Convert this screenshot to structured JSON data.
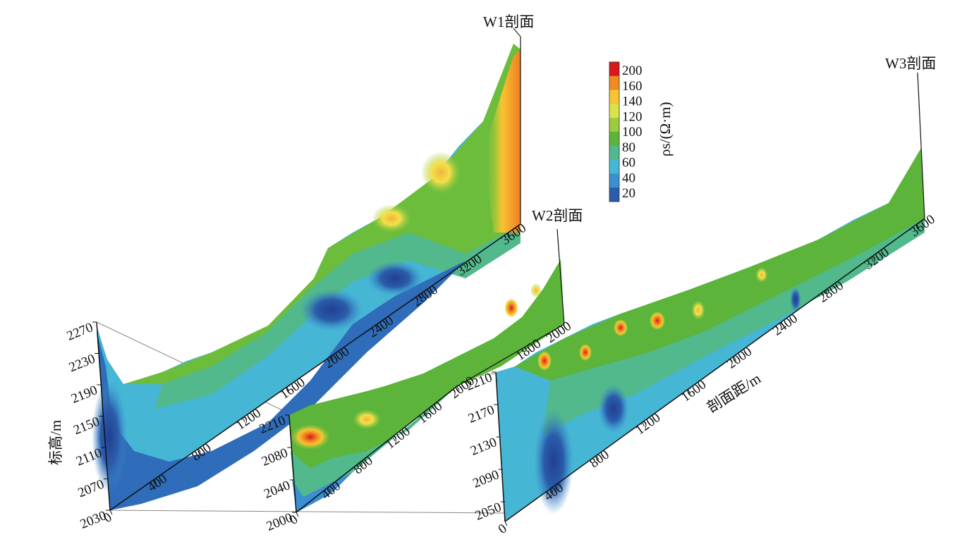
{
  "diagram": {
    "type": "3d fence diagram of apparent resistivity sections",
    "profiles": [
      {
        "id": "W1",
        "title": "W1剖面",
        "distance_ticks": [
          "0",
          "400",
          "800",
          "1200",
          "1600",
          "2000",
          "2400",
          "2800",
          "3200",
          "3600"
        ],
        "elevation_ticks": [
          "2030",
          "2070",
          "2110",
          "2150",
          "2190",
          "2230",
          "2270"
        ]
      },
      {
        "id": "W2",
        "title": "W2剖面",
        "distance_ticks": [
          "0",
          "400",
          "800",
          "1200",
          "1600",
          "2000"
        ],
        "distance_ticks_upper": [
          "1800",
          "2000"
        ],
        "elevation_ticks": [
          "2000",
          "2040",
          "2080",
          "2210"
        ]
      },
      {
        "id": "W3",
        "title": "W3剖面",
        "distance_ticks": [
          "0",
          "400",
          "800",
          "1200",
          "1600",
          "2000",
          "2400",
          "2800",
          "3200",
          "3600"
        ],
        "elevation_ticks": [
          "2050",
          "2090",
          "2130",
          "2170",
          "2210"
        ],
        "xlabel": "剖面距/m"
      }
    ],
    "ylabel": "标高/m",
    "colorbar": {
      "label": "ρs/(Ω·m)",
      "ticks": [
        "200",
        "160",
        "140",
        "120",
        "100",
        "80",
        "60",
        "40",
        "20"
      ],
      "colors": [
        "#d7191c",
        "#f08a24",
        "#f7c532",
        "#d9e34a",
        "#9ccb3e",
        "#5db43b",
        "#52b98c",
        "#46b6d5",
        "#3b8fd0",
        "#2a5caa"
      ]
    }
  }
}
